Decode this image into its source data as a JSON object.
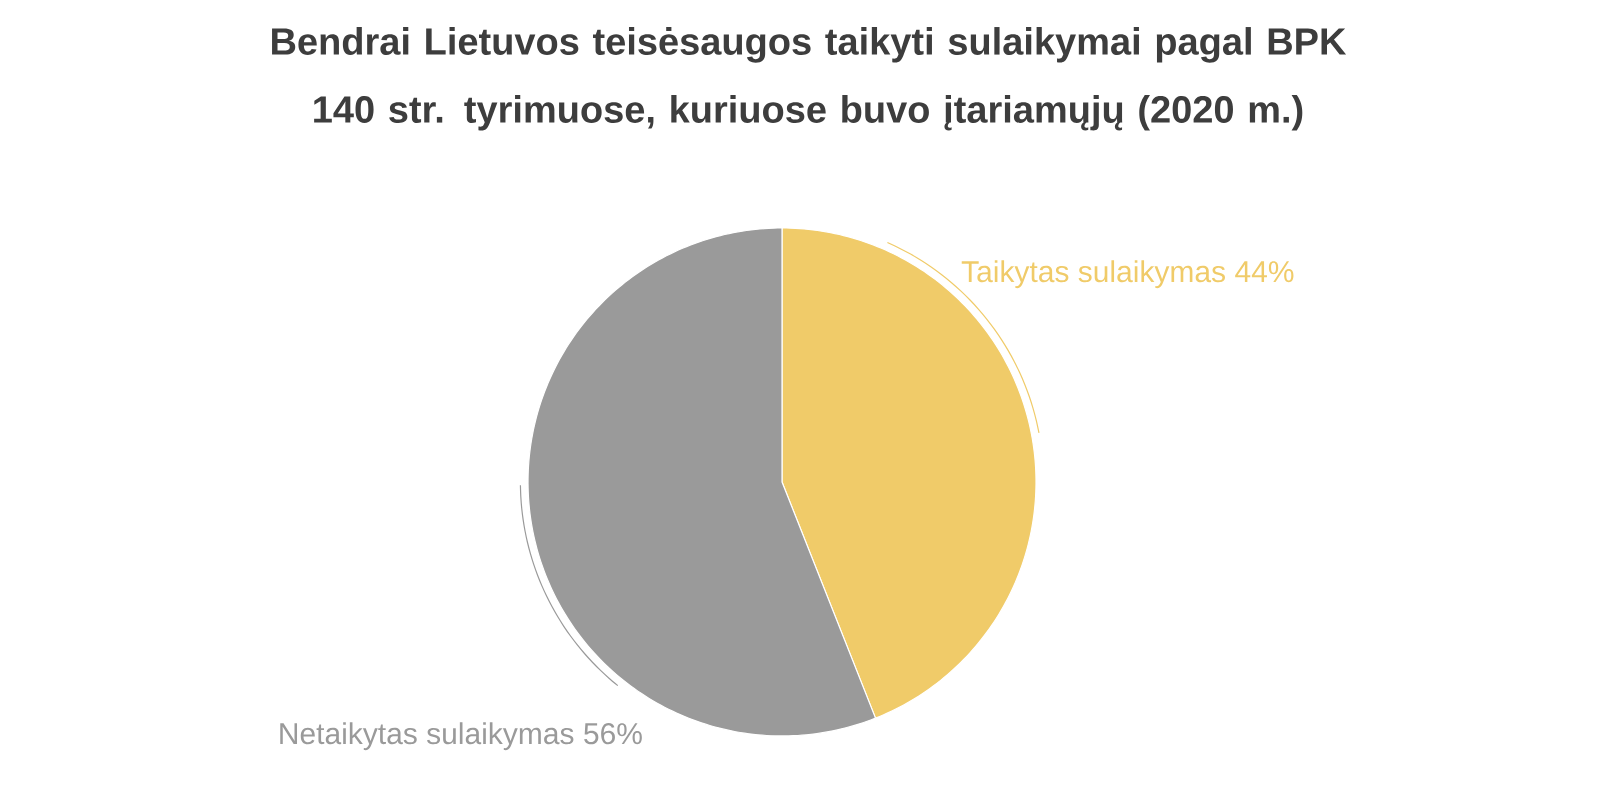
{
  "chart_data": {
    "type": "pie",
    "title": "Bendrai Lietuvos teisėsaugos taikyti sulaikymai pagal BPK 140 str. tyrimuose, kuriuose buvo įtariamųjų (2020 m.)",
    "categories": [
      "Taikytas sulaikymas",
      "Netaikytas sulaikymas"
    ],
    "values": [
      44,
      56
    ],
    "value_labels": [
      "44%",
      "56%"
    ],
    "colors": [
      "#f0cb69",
      "#9a9a9a"
    ]
  }
}
